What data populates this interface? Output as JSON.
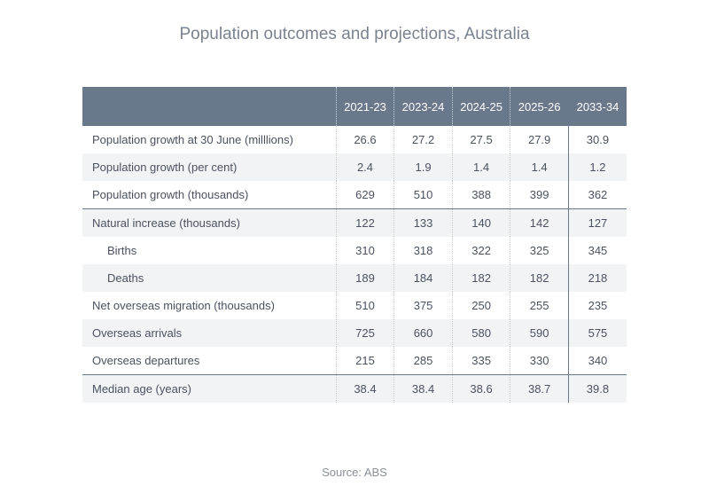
{
  "title": "Population outcomes and projections, Australia",
  "source": "Source: ABS",
  "chart_data": {
    "type": "table",
    "columns": [
      "2021-23",
      "2023-24",
      "2024-25",
      "2025-26",
      "2033-34"
    ],
    "rows": [
      {
        "label": "Population growth at 30 June (milllions)",
        "values": [
          "26.6",
          "27.2",
          "27.5",
          "27.9",
          "30.9"
        ]
      },
      {
        "label": "Population growth (per cent)",
        "values": [
          "2.4",
          "1.9",
          "1.4",
          "1.4",
          "1.2"
        ]
      },
      {
        "label": "Population growth (thousands)",
        "values": [
          "629",
          "510",
          "388",
          "399",
          "362"
        ]
      },
      {
        "label": "Natural increase (thousands)",
        "values": [
          "122",
          "133",
          "140",
          "142",
          "127"
        ]
      },
      {
        "label": "Births",
        "values": [
          "310",
          "318",
          "322",
          "325",
          "345"
        ]
      },
      {
        "label": "Deaths",
        "values": [
          "189",
          "184",
          "182",
          "182",
          "218"
        ]
      },
      {
        "label": "Net overseas migration (thousands)",
        "values": [
          "510",
          "375",
          "250",
          "255",
          "235"
        ]
      },
      {
        "label": "Overseas arrivals",
        "values": [
          "725",
          "660",
          "580",
          "590",
          "575"
        ]
      },
      {
        "label": "Overseas departures",
        "values": [
          "215",
          "285",
          "335",
          "330",
          "340"
        ]
      },
      {
        "label": "Median age (years)",
        "values": [
          "38.4",
          "38.4",
          "38.6",
          "38.7",
          "39.8"
        ]
      }
    ]
  }
}
